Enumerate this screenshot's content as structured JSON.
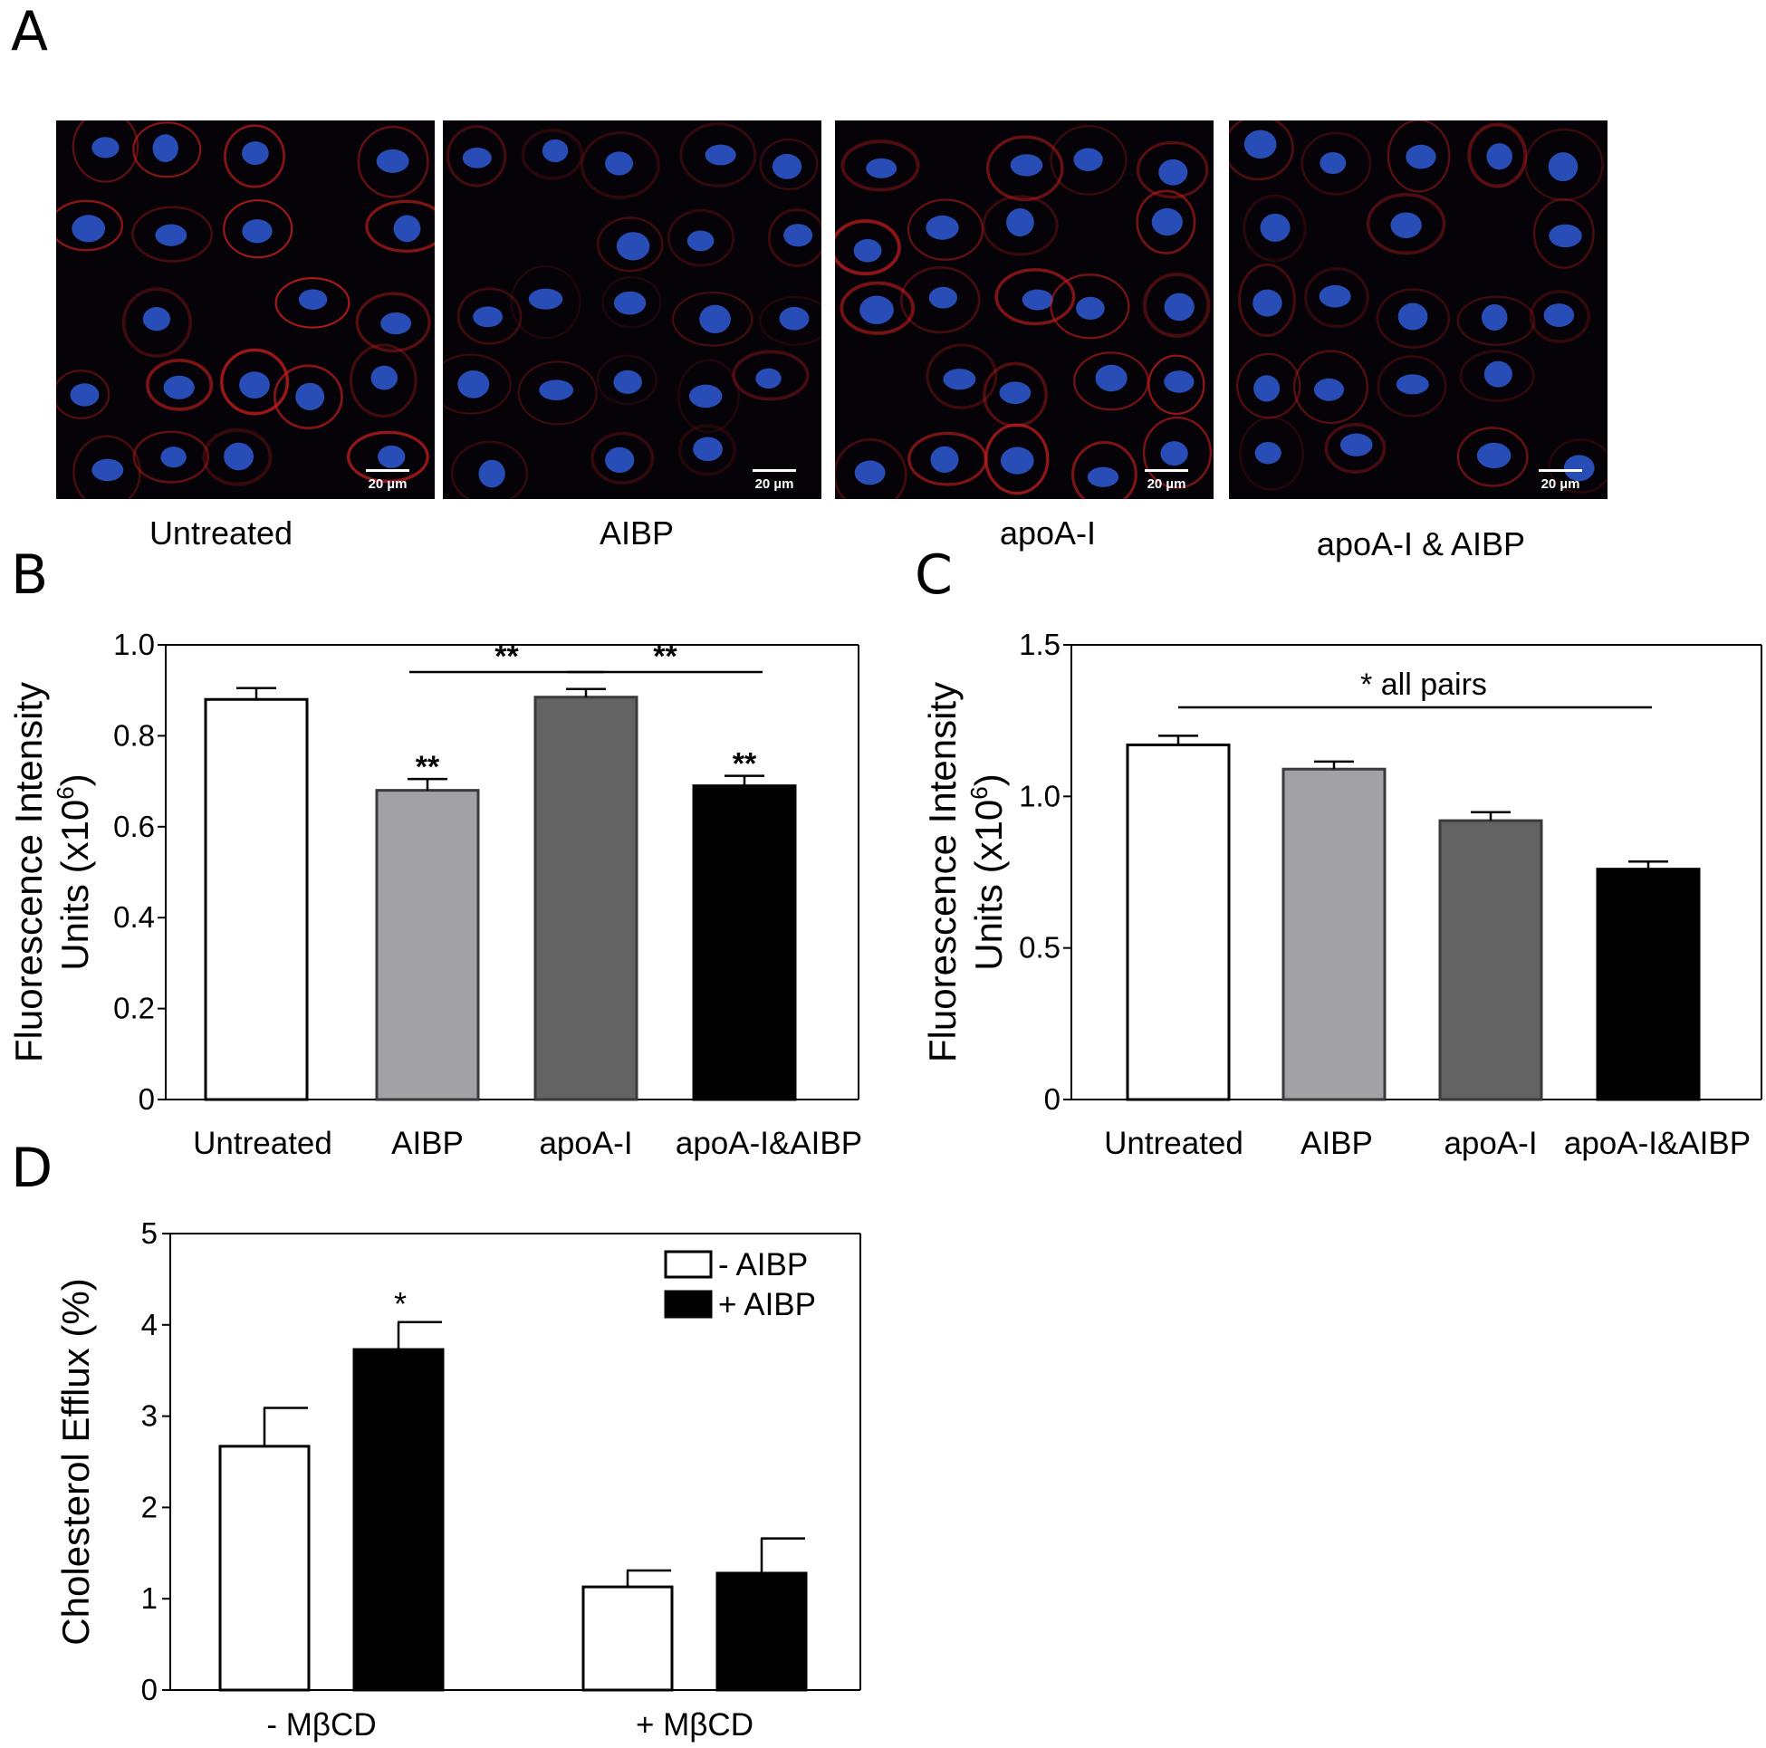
{
  "panels": {
    "a": "A",
    "b": "B",
    "c": "C",
    "d": "D"
  },
  "micrographs": [
    {
      "label": "Untreated",
      "scale": "20 µm",
      "red": 1.0
    },
    {
      "label": "AIBP",
      "scale": "20 µm",
      "red": 0.45
    },
    {
      "label": "apoA-I",
      "scale": "20 µm",
      "red": 0.95
    },
    {
      "label": "apoA-I & AIBP",
      "scale": "20 µm",
      "red": 0.6
    }
  ],
  "colors": {
    "untreated": "#ffffff",
    "aibp": "#a2a2a6",
    "apoai": "#636363",
    "combo": "#000000",
    "nucleus": "#2f5bd6",
    "membrane": "#c81e1e"
  },
  "chart_data": [
    {
      "id": "B",
      "type": "bar",
      "ylabel_line1": "Fluorescence Intensity",
      "ylabel_line2": "Units (x10",
      "ylabel_sup": "6",
      "ylabel_end": ")",
      "ylim": [
        0,
        1.0
      ],
      "yticks": [
        "0",
        "0.2",
        "0.4",
        "0.6",
        "0.8",
        "1.0"
      ],
      "categories": [
        "Untreated",
        "AIBP",
        "apoA-I",
        "apoA-I&AIBP"
      ],
      "values": [
        0.88,
        0.68,
        0.885,
        0.69
      ],
      "errors": [
        0.025,
        0.025,
        0.018,
        0.022
      ],
      "bar_colors": [
        "#ffffff",
        "#a2a2a6",
        "#636363",
        "#000000"
      ],
      "bar_annotations": [
        "",
        "**",
        "",
        "**"
      ],
      "brackets": [
        {
          "from": 1,
          "to": 2,
          "label": "**"
        },
        {
          "from": 2,
          "to": 3,
          "label": "**"
        }
      ]
    },
    {
      "id": "C",
      "type": "bar",
      "ylabel_line1": "Fluorescence Intensity",
      "ylabel_line2": "Units (x10",
      "ylabel_sup": "6",
      "ylabel_end": ")",
      "ylim": [
        0,
        1.5
      ],
      "yticks": [
        "0",
        "0.5",
        "1.0",
        "1.5"
      ],
      "categories": [
        "Untreated",
        "AIBP",
        "apoA-I",
        "apoA-I&AIBP"
      ],
      "values": [
        1.17,
        1.09,
        0.92,
        0.76
      ],
      "errors": [
        0.03,
        0.025,
        0.028,
        0.025
      ],
      "bar_colors": [
        "#ffffff",
        "#a2a2a6",
        "#636363",
        "#000000"
      ],
      "bracket": {
        "from": 0,
        "to": 3,
        "label": "*  all pairs"
      }
    },
    {
      "id": "D",
      "type": "bar",
      "ylabel": "Cholesterol Efflux (%)",
      "ylim": [
        0,
        5
      ],
      "yticks": [
        "0",
        "1",
        "2",
        "3",
        "4",
        "5"
      ],
      "categories": [
        "- MβCD",
        "+ MβCD"
      ],
      "series": [
        {
          "name": "- AIBP",
          "color": "#ffffff",
          "values": [
            2.67,
            1.13
          ],
          "errors": [
            0.42,
            0.18
          ]
        },
        {
          "name": "+ AIBP",
          "color": "#000000",
          "values": [
            3.73,
            1.28
          ],
          "errors": [
            0.3,
            0.38
          ]
        }
      ],
      "annotations": [
        {
          "series": 1,
          "category": 0,
          "label": "*"
        }
      ],
      "legend": "top-right"
    }
  ]
}
